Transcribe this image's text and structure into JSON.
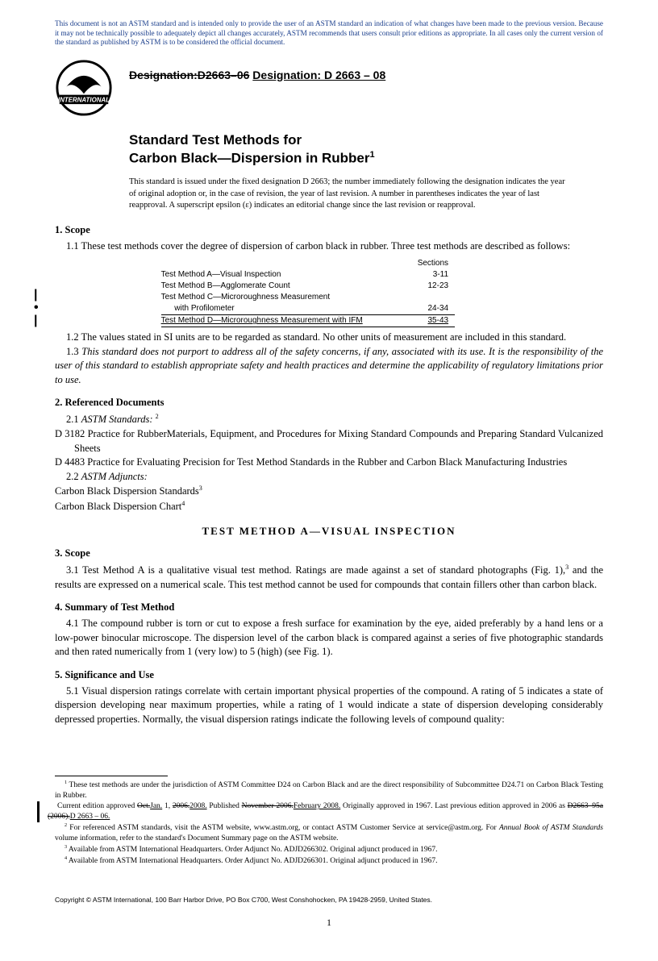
{
  "disclaimer": "This document is not an ASTM standard and is intended only to provide the user of an ASTM standard an indication of what changes have been made to the previous version. Because it may not be technically possible to adequately depict all changes accurately, ASTM recommends that users consult prior editions as appropriate. In all cases only the current version of the standard as published by ASTM is to be considered the official document.",
  "logo_text_top": "INTERNATIONAL",
  "designation_old": "Designation:D2663–06",
  "designation_new": "Designation: D 2663 – 08",
  "title_line1": "Standard Test Methods for",
  "title_line2": "Carbon Black—Dispersion in Rubber",
  "title_sup": "1",
  "issued": "This standard is issued under the fixed designation D 2663; the number immediately following the designation indicates the year of original adoption or, in the case of revision, the year of last revision. A number in parentheses indicates the year of last reapproval. A superscript epsilon (ε) indicates an editorial change since the last revision or reapproval.",
  "s1_head": "1. Scope",
  "s1_1": "1.1 These test methods cover the degree of dispersion of carbon black in rubber. Three test methods are described as follows:",
  "methods_header_right": "Sections",
  "methods": [
    {
      "name": "Test Method A—Visual Inspection",
      "sec": "3-11"
    },
    {
      "name": "Test Method B—Agglomerate Count",
      "sec": "12-23"
    },
    {
      "name": "Test Method C—Microroughness Measurement",
      "sec": ""
    },
    {
      "name": "      with Profilometer",
      "sec": "24-34"
    }
  ],
  "method_last": {
    "name": "Test Method D—Microroughness Measurement with IFM",
    "sec": "35-43"
  },
  "s1_2": "1.2 The values stated in SI units are to be regarded as standard. No other units of measurement are included in this standard.",
  "s1_3": "1.3 This standard does not purport to address all of the safety concerns, if any, associated with its use. It is the responsibility of the user of this standard to establish appropriate safety and health practices and determine the applicability of regulatory limitations prior to use.",
  "s2_head": "2. Referenced Documents",
  "s2_1_label": "2.1",
  "s2_1_italic": "ASTM Standards:",
  "s2_1_sup": "2",
  "d3182": "D 3182  Practice for RubberMaterials, Equipment, and Procedures for Mixing Standard Compounds and Preparing Standard Vulcanized Sheets",
  "d4483": "D 4483  Practice for Evaluating Precision for Test Method Standards in the Rubber and Carbon Black Manufacturing Industries",
  "s2_2_label": "2.2",
  "s2_2_italic": "ASTM Adjuncts:",
  "adj1": "Carbon Black Dispersion Standards",
  "adj1_sup": "3",
  "adj2": "Carbon Black Dispersion Chart",
  "adj2_sup": "4",
  "method_a_head": "TEST  METHOD  A—VISUAL  INSPECTION",
  "s3_head": "3. Scope",
  "s3_1_a": "3.1 Test Method A is a qualitative visual test method. Ratings are made against a set of standard photographs (Fig. 1),",
  "s3_1_sup": "3",
  "s3_1_b": " and the results are expressed on a numerical scale. This test method cannot be used for compounds that contain fillers other than carbon black.",
  "s4_head": "4. Summary of Test Method",
  "s4_1": "4.1 The compound rubber is torn or cut to expose a fresh surface for examination by the eye, aided preferably by a hand lens or a low-power binocular microscope. The dispersion level of the carbon black is compared against a series of five photographic standards and then rated numerically from 1 (very low) to 5 (high) (see Fig. 1).",
  "s5_head": "5. Significance and Use",
  "s5_1": "5.1 Visual dispersion ratings correlate with certain important physical properties of the compound. A rating of 5 indicates a state of dispersion developing near maximum properties, while a rating of 1 would indicate a state of dispersion developing considerably depressed properties. Normally, the visual dispersion ratings indicate the following levels of compound quality:",
  "fn1": " These test methods are under the jurisdiction of ASTM Committee D24 on Carbon Black and are the direct responsibility of Subcommittee D24.71 on Carbon Black Testing in Rubber.",
  "fn1b_a": "Current edition approved ",
  "fn1b_strike1": "Oct.",
  "fn1b_ins1": "Jan.",
  "fn1b_mid1": " 1, ",
  "fn1b_strike2": "2006.",
  "fn1b_ins2": "2008.",
  "fn1b_mid2": " Published ",
  "fn1b_strike3": "November 2006.",
  "fn1b_ins3": "February 2008.",
  "fn1b_mid3": " Originally approved in 1967. Last previous edition approved in 2006 as ",
  "fn1b_strike4": "D2663–95a (2006).",
  "fn1b_ins4": "D 2663 – 06.",
  "fn2_a": " For referenced ASTM standards, visit the ASTM website, www.astm.org, or contact ASTM Customer Service at service@astm.org. For ",
  "fn2_i": "Annual Book of ASTM Standards",
  "fn2_b": " volume information, refer to the standard's Document Summary page on the ASTM website.",
  "fn3": " Available from ASTM International Headquarters. Order Adjunct No. ADJD266302. Original adjunct produced in 1967.",
  "fn4": " Available from ASTM International Headquarters. Order Adjunct No. ADJD266301. Original adjunct produced in 1967.",
  "copyright": "Copyright © ASTM International, 100 Barr Harbor Drive, PO Box C700, West Conshohocken, PA 19428-2959, United States.",
  "page_number": "1"
}
